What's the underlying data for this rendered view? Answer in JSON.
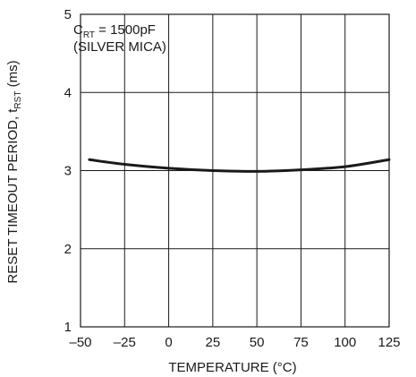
{
  "chart_data": {
    "type": "line",
    "xlabel": "TEMPERATURE (°C)",
    "ylabel": {
      "main": "RESET TIMEOUT PERIOD, t",
      "sub": "RST",
      "unit": " (ms)"
    },
    "xlim": [
      -50,
      125
    ],
    "ylim": [
      1,
      5
    ],
    "x_ticks": [
      -50,
      -25,
      0,
      25,
      50,
      75,
      100,
      125
    ],
    "x_tick_labels": [
      "–50",
      "–25",
      "0",
      "25",
      "50",
      "75",
      "100",
      "125"
    ],
    "y_ticks": [
      1,
      2,
      3,
      4,
      5
    ],
    "y_tick_labels": [
      "1",
      "2",
      "3",
      "4",
      "5"
    ],
    "grid": true,
    "annotation": {
      "line1_main": "C",
      "line1_sub": "RT",
      "line1_rest": " = 1500pF",
      "line2": "(SILVER MICA)"
    },
    "series": [
      {
        "x": [
          -45,
          -25,
          0,
          25,
          50,
          75,
          100,
          125
        ],
        "y": [
          3.14,
          3.08,
          3.03,
          3.0,
          2.99,
          3.01,
          3.05,
          3.14
        ]
      }
    ]
  }
}
